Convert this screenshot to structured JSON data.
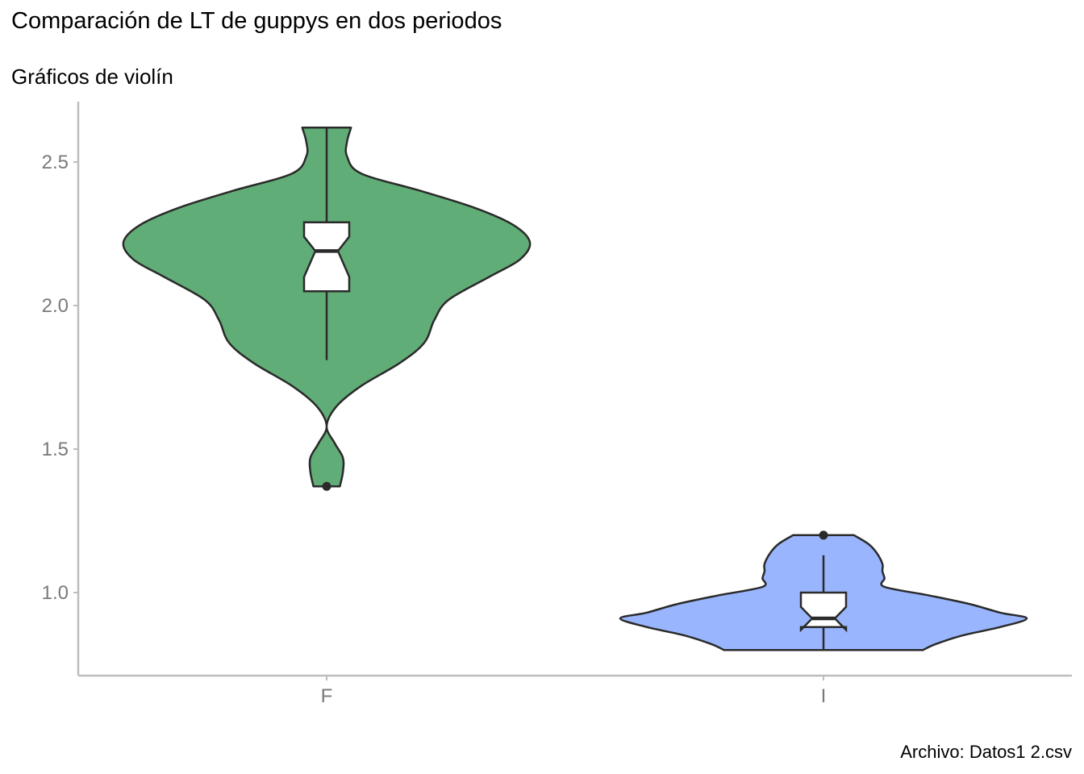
{
  "chart_data": {
    "type": "violin",
    "title": "Comparación de LT de guppys en dos periodos",
    "subtitle": "Gráficos de violín",
    "caption": "Archivo: Datos1 2.csv",
    "xlabel": "",
    "ylabel": "",
    "categories": [
      "F",
      "I"
    ],
    "ylim": [
      0.72,
      2.73
    ],
    "yticks": [
      1.0,
      1.5,
      2.0,
      2.5
    ],
    "ytick_labels": [
      "1.0",
      "1.5",
      "2.0",
      "2.5"
    ],
    "grid": false,
    "legend": "none",
    "series": [
      {
        "category": "F",
        "color": "#61ad77",
        "violin_min": 1.37,
        "violin_max": 2.62,
        "density": [
          [
            1.37,
            0.065
          ],
          [
            1.42,
            0.08
          ],
          [
            1.47,
            0.08
          ],
          [
            1.52,
            0.04
          ],
          [
            1.58,
            0.0
          ],
          [
            1.65,
            0.05
          ],
          [
            1.72,
            0.17
          ],
          [
            1.8,
            0.36
          ],
          [
            1.87,
            0.48
          ],
          [
            1.95,
            0.53
          ],
          [
            2.02,
            0.6
          ],
          [
            2.1,
            0.8
          ],
          [
            2.16,
            0.95
          ],
          [
            2.22,
            1.0
          ],
          [
            2.28,
            0.92
          ],
          [
            2.34,
            0.73
          ],
          [
            2.4,
            0.46
          ],
          [
            2.46,
            0.17
          ],
          [
            2.52,
            0.1
          ],
          [
            2.57,
            0.1
          ],
          [
            2.62,
            0.12
          ]
        ],
        "box": {
          "whisker_low": 1.81,
          "q1": 2.05,
          "median": 2.19,
          "q3": 2.29,
          "whisker_high": 2.62,
          "notch_low": 2.1,
          "notch_high": 2.24
        },
        "outliers": [
          1.37
        ]
      },
      {
        "category": "I",
        "color": "#99b5fd",
        "violin_min": 0.8,
        "violin_max": 1.2,
        "density": [
          [
            0.8,
            0.49
          ],
          [
            0.82,
            0.55
          ],
          [
            0.85,
            0.68
          ],
          [
            0.88,
            0.87
          ],
          [
            0.91,
            1.0
          ],
          [
            0.93,
            0.87
          ],
          [
            0.96,
            0.72
          ],
          [
            0.99,
            0.52
          ],
          [
            1.02,
            0.3
          ],
          [
            1.05,
            0.3
          ],
          [
            1.075,
            0.29
          ],
          [
            1.1,
            0.29
          ],
          [
            1.14,
            0.26
          ],
          [
            1.17,
            0.22
          ],
          [
            1.2,
            0.15
          ]
        ],
        "box": {
          "whisker_low": 0.8,
          "q1": 0.88,
          "median": 0.91,
          "q3": 1.0,
          "whisker_high": 1.13,
          "notch_low": 0.87,
          "notch_high": 0.95
        },
        "outliers": [
          1.2
        ]
      }
    ]
  }
}
